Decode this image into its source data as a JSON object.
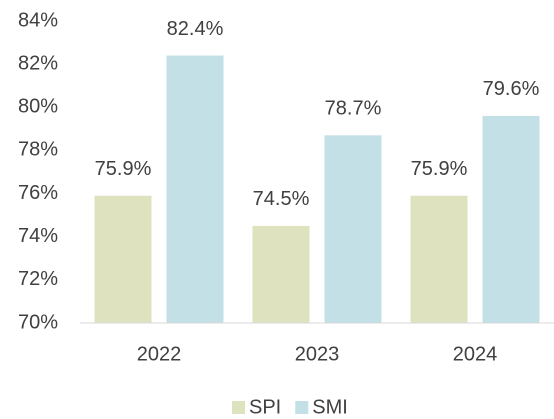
{
  "chart_data": {
    "type": "bar",
    "categories": [
      "2022",
      "2023",
      "2024"
    ],
    "series": [
      {
        "name": "SPI",
        "color": "#dfe2bf",
        "values": [
          75.9,
          74.5,
          75.9
        ],
        "value_labels": [
          "75.9%",
          "74.5%",
          "75.9%"
        ]
      },
      {
        "name": "SMI",
        "color": "#c2e0e6",
        "values": [
          82.4,
          78.7,
          79.6
        ],
        "value_labels": [
          "82.4%",
          "78.7%",
          "79.6%"
        ]
      }
    ],
    "ylim": [
      70,
      84
    ],
    "yticks": [
      {
        "value": 70,
        "label": "70%"
      },
      {
        "value": 72,
        "label": "72%"
      },
      {
        "value": 74,
        "label": "74%"
      },
      {
        "value": 76,
        "label": "76%"
      },
      {
        "value": 78,
        "label": "78%"
      },
      {
        "value": 80,
        "label": "80%"
      },
      {
        "value": 82,
        "label": "82%"
      },
      {
        "value": 84,
        "label": "84%"
      }
    ],
    "grid": false,
    "legend": "bottom"
  }
}
